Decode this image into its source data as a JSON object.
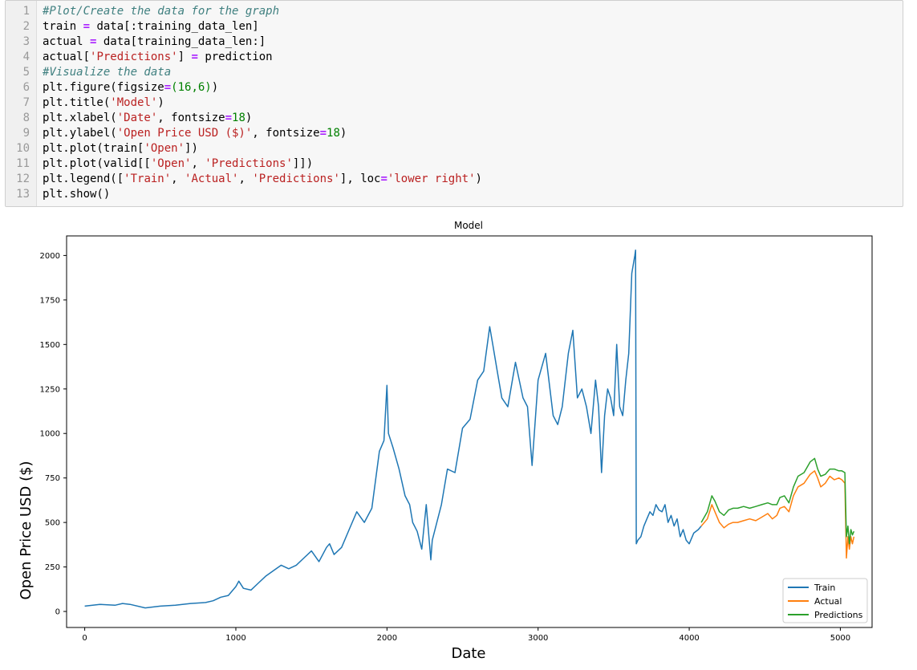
{
  "code_cell": {
    "lines": [
      {
        "n": "1",
        "tokens": [
          {
            "t": "#Plot/Create the data for the graph",
            "c": "cmt"
          }
        ]
      },
      {
        "n": "2",
        "tokens": [
          {
            "t": "train "
          },
          {
            "t": "=",
            "c": "op"
          },
          {
            "t": " data[:training_data_len]"
          }
        ]
      },
      {
        "n": "3",
        "tokens": [
          {
            "t": "actual "
          },
          {
            "t": "=",
            "c": "op"
          },
          {
            "t": " data[training_data_len:]"
          }
        ]
      },
      {
        "n": "4",
        "tokens": [
          {
            "t": "actual["
          },
          {
            "t": "'Predictions'",
            "c": "str"
          },
          {
            "t": "] "
          },
          {
            "t": "=",
            "c": "op"
          },
          {
            "t": " prediction"
          }
        ]
      },
      {
        "n": "5",
        "tokens": [
          {
            "t": "#Visualize the data",
            "c": "cmt"
          }
        ]
      },
      {
        "n": "6",
        "tokens": [
          {
            "t": "plt.figure(figsize"
          },
          {
            "t": "=",
            "c": "op"
          },
          {
            "t": "(16,6)",
            "c": "num"
          },
          {
            "t": ")"
          }
        ]
      },
      {
        "n": "7",
        "tokens": [
          {
            "t": "plt.title("
          },
          {
            "t": "'Model'",
            "c": "str"
          },
          {
            "t": ")"
          }
        ]
      },
      {
        "n": "8",
        "tokens": [
          {
            "t": "plt.xlabel("
          },
          {
            "t": "'Date'",
            "c": "str"
          },
          {
            "t": ", fontsize"
          },
          {
            "t": "=",
            "c": "op"
          },
          {
            "t": "18",
            "c": "num"
          },
          {
            "t": ")"
          }
        ]
      },
      {
        "n": "9",
        "tokens": [
          {
            "t": "plt.ylabel("
          },
          {
            "t": "'Open Price USD ($)'",
            "c": "str"
          },
          {
            "t": ", fontsize"
          },
          {
            "t": "=",
            "c": "op"
          },
          {
            "t": "18",
            "c": "num"
          },
          {
            "t": ")"
          }
        ]
      },
      {
        "n": "10",
        "tokens": [
          {
            "t": "plt.plot(train["
          },
          {
            "t": "'Open'",
            "c": "str"
          },
          {
            "t": "])"
          }
        ]
      },
      {
        "n": "11",
        "tokens": [
          {
            "t": "plt.plot(valid[["
          },
          {
            "t": "'Open'",
            "c": "str"
          },
          {
            "t": ", "
          },
          {
            "t": "'Predictions'",
            "c": "str"
          },
          {
            "t": "]])"
          }
        ]
      },
      {
        "n": "12",
        "tokens": [
          {
            "t": "plt.legend(["
          },
          {
            "t": "'Train'",
            "c": "str"
          },
          {
            "t": ", "
          },
          {
            "t": "'Actual'",
            "c": "str"
          },
          {
            "t": ", "
          },
          {
            "t": "'Predictions'",
            "c": "str"
          },
          {
            "t": "], loc"
          },
          {
            "t": "=",
            "c": "op"
          },
          {
            "t": "'lower right'",
            "c": "str"
          },
          {
            "t": ")"
          }
        ]
      },
      {
        "n": "13",
        "tokens": [
          {
            "t": "plt.show()"
          }
        ]
      }
    ]
  },
  "chart_data": {
    "type": "line",
    "title": "Model",
    "xlabel": "Date",
    "ylabel": "Open Price USD ($)",
    "xlim": [
      -120,
      5210
    ],
    "ylim": [
      -90,
      2110
    ],
    "xticks": [
      0,
      1000,
      2000,
      3000,
      4000,
      5000
    ],
    "yticks": [
      0,
      250,
      500,
      750,
      1000,
      1250,
      1500,
      1750,
      2000
    ],
    "grid": false,
    "legend": "lower right",
    "series": [
      {
        "name": "Train",
        "color": "#1f77b4",
        "x": [
          0,
          100,
          200,
          250,
          300,
          400,
          500,
          600,
          700,
          800,
          850,
          900,
          950,
          1000,
          1020,
          1050,
          1100,
          1150,
          1200,
          1250,
          1300,
          1350,
          1400,
          1450,
          1500,
          1550,
          1600,
          1620,
          1650,
          1700,
          1750,
          1800,
          1850,
          1900,
          1950,
          1980,
          2000,
          2010,
          2040,
          2080,
          2120,
          2150,
          2170,
          2200,
          2230,
          2260,
          2290,
          2300,
          2330,
          2360,
          2400,
          2450,
          2500,
          2550,
          2600,
          2640,
          2680,
          2700,
          2730,
          2760,
          2800,
          2850,
          2900,
          2930,
          2960,
          3000,
          3050,
          3100,
          3130,
          3160,
          3200,
          3230,
          3260,
          3290,
          3320,
          3350,
          3380,
          3400,
          3420,
          3440,
          3460,
          3480,
          3500,
          3520,
          3540,
          3560,
          3580,
          3600,
          3620,
          3640,
          3645,
          3650,
          3660,
          3680,
          3700,
          3720,
          3740,
          3760,
          3780,
          3800,
          3820,
          3840,
          3860,
          3880,
          3900,
          3920,
          3940,
          3960,
          3980,
          4000,
          4030,
          4060,
          4080
        ],
        "y": [
          30,
          40,
          35,
          45,
          40,
          20,
          30,
          35,
          45,
          50,
          60,
          80,
          90,
          140,
          170,
          130,
          120,
          160,
          200,
          230,
          260,
          240,
          260,
          300,
          340,
          280,
          360,
          380,
          320,
          360,
          460,
          560,
          500,
          580,
          900,
          960,
          1270,
          1000,
          920,
          800,
          650,
          600,
          500,
          450,
          350,
          600,
          290,
          400,
          500,
          600,
          800,
          780,
          1030,
          1080,
          1300,
          1350,
          1600,
          1500,
          1350,
          1200,
          1150,
          1400,
          1200,
          1150,
          820,
          1300,
          1450,
          1100,
          1050,
          1150,
          1450,
          1580,
          1200,
          1250,
          1150,
          1000,
          1300,
          1150,
          780,
          1100,
          1250,
          1200,
          1100,
          1500,
          1150,
          1100,
          1300,
          1450,
          1900,
          2000,
          2030,
          380,
          400,
          420,
          480,
          520,
          560,
          540,
          600,
          570,
          560,
          600,
          500,
          540,
          480,
          520,
          420,
          460,
          400,
          380,
          440,
          460,
          480
        ],
        "x_lines": []
      },
      {
        "name": "Actual",
        "color": "#ff7f0e",
        "x": [
          4080,
          4120,
          4150,
          4170,
          4200,
          4230,
          4260,
          4290,
          4320,
          4360,
          4400,
          4440,
          4480,
          4520,
          4550,
          4580,
          4600,
          4630,
          4660,
          4690,
          4720,
          4760,
          4800,
          4830,
          4850,
          4870,
          4900,
          4930,
          4960,
          4990,
          5010,
          5030,
          5040,
          5050,
          5060,
          5070,
          5080,
          5090
        ],
        "y": [
          480,
          520,
          600,
          560,
          500,
          470,
          490,
          500,
          500,
          510,
          520,
          510,
          530,
          550,
          520,
          540,
          580,
          590,
          560,
          650,
          700,
          720,
          770,
          790,
          750,
          700,
          720,
          760,
          740,
          750,
          740,
          720,
          300,
          420,
          350,
          420,
          380,
          420
        ]
      },
      {
        "name": "Predictions",
        "color": "#2ca02c",
        "x": [
          4080,
          4120,
          4150,
          4170,
          4200,
          4230,
          4260,
          4290,
          4320,
          4360,
          4400,
          4440,
          4480,
          4520,
          4550,
          4580,
          4600,
          4630,
          4660,
          4690,
          4720,
          4760,
          4800,
          4830,
          4850,
          4870,
          4900,
          4930,
          4960,
          4990,
          5010,
          5030,
          5040,
          5050,
          5060,
          5070,
          5080,
          5090
        ],
        "y": [
          500,
          560,
          650,
          620,
          560,
          540,
          570,
          580,
          580,
          590,
          580,
          590,
          600,
          610,
          600,
          600,
          640,
          650,
          610,
          700,
          760,
          780,
          840,
          860,
          800,
          760,
          770,
          800,
          800,
          790,
          790,
          780,
          420,
          480,
          380,
          460,
          430,
          450
        ]
      }
    ]
  },
  "colors": {
    "train": "#1f77b4",
    "actual": "#ff7f0e",
    "predictions": "#2ca02c",
    "axes": "#000000"
  }
}
